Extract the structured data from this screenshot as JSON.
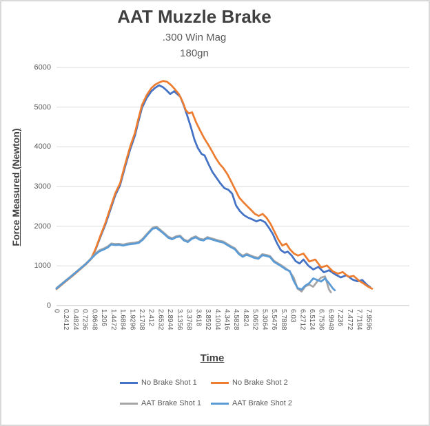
{
  "chart_data": {
    "type": "line",
    "title": "AAT Muzzle Brake",
    "subtitle_line1": ".300 Win Mag",
    "subtitle_line2": "180gn",
    "xlabel": "Time",
    "ylabel": "Force Measured (Newton)",
    "ylim": [
      0,
      6000
    ],
    "y_ticks": [
      0,
      1000,
      2000,
      3000,
      4000,
      5000,
      6000
    ],
    "x_axis_max_time": 9.0,
    "grid": "horizontal",
    "legend_position": "bottom",
    "gridline_color": "#d9d9d9",
    "axis_line_color": "#bfbfbf",
    "text_color": "#595959",
    "x_tick_labels": [
      "0",
      "0.2412",
      "0.4824",
      "0.7236",
      "0.9648",
      "1.206",
      "1.4472",
      "1.6884",
      "1.9296",
      "2.1708",
      "2.412",
      "2.6532",
      "2.8944",
      "3.1356",
      "3.3768",
      "3.618",
      "3.8592",
      "4.1004",
      "4.3416",
      "4.5828",
      "4.824",
      "5.0652",
      "5.3064",
      "5.5476",
      "5.7888",
      "6.03",
      "6.2712",
      "6.5124",
      "6.7536",
      "6.9948",
      "7.236",
      "7.4772",
      "7.7184",
      "7.9596"
    ],
    "series": [
      {
        "name": "No Brake Shot 1",
        "color": "#4472C4",
        "points": [
          [
            0,
            430
          ],
          [
            0.12,
            530
          ],
          [
            0.25,
            635
          ],
          [
            0.38,
            740
          ],
          [
            0.5,
            840
          ],
          [
            0.62,
            940
          ],
          [
            0.75,
            1050
          ],
          [
            0.88,
            1180
          ],
          [
            1.0,
            1420
          ],
          [
            1.12,
            1730
          ],
          [
            1.25,
            2050
          ],
          [
            1.38,
            2430
          ],
          [
            1.5,
            2780
          ],
          [
            1.62,
            3030
          ],
          [
            1.75,
            3500
          ],
          [
            1.88,
            3940
          ],
          [
            2.0,
            4280
          ],
          [
            2.08,
            4600
          ],
          [
            2.18,
            4980
          ],
          [
            2.3,
            5230
          ],
          [
            2.42,
            5400
          ],
          [
            2.52,
            5490
          ],
          [
            2.62,
            5550
          ],
          [
            2.72,
            5500
          ],
          [
            2.8,
            5430
          ],
          [
            2.9,
            5330
          ],
          [
            3.0,
            5400
          ],
          [
            3.08,
            5330
          ],
          [
            3.16,
            5260
          ],
          [
            3.24,
            5060
          ],
          [
            3.32,
            4830
          ],
          [
            3.42,
            4520
          ],
          [
            3.52,
            4180
          ],
          [
            3.6,
            3980
          ],
          [
            3.7,
            3820
          ],
          [
            3.78,
            3780
          ],
          [
            3.88,
            3560
          ],
          [
            3.98,
            3360
          ],
          [
            4.08,
            3220
          ],
          [
            4.18,
            3080
          ],
          [
            4.28,
            2960
          ],
          [
            4.38,
            2920
          ],
          [
            4.48,
            2820
          ],
          [
            4.58,
            2520
          ],
          [
            4.68,
            2380
          ],
          [
            4.78,
            2280
          ],
          [
            4.88,
            2220
          ],
          [
            5.0,
            2170
          ],
          [
            5.1,
            2120
          ],
          [
            5.2,
            2160
          ],
          [
            5.32,
            2100
          ],
          [
            5.42,
            1960
          ],
          [
            5.52,
            1800
          ],
          [
            5.62,
            1580
          ],
          [
            5.72,
            1400
          ],
          [
            5.82,
            1330
          ],
          [
            5.9,
            1360
          ],
          [
            6.0,
            1260
          ],
          [
            6.1,
            1120
          ],
          [
            6.2,
            1060
          ],
          [
            6.3,
            1160
          ],
          [
            6.42,
            1010
          ],
          [
            6.55,
            910
          ],
          [
            6.68,
            975
          ],
          [
            6.82,
            840
          ],
          [
            6.95,
            890
          ],
          [
            7.1,
            790
          ],
          [
            7.25,
            710
          ],
          [
            7.4,
            765
          ],
          [
            7.55,
            655
          ],
          [
            7.68,
            610
          ],
          [
            7.8,
            645
          ],
          [
            7.92,
            520
          ],
          [
            8.0,
            465
          ]
        ]
      },
      {
        "name": "No Brake Shot 2",
        "color": "#ED7D31",
        "points": [
          [
            0,
            415
          ],
          [
            0.12,
            515
          ],
          [
            0.25,
            620
          ],
          [
            0.38,
            725
          ],
          [
            0.5,
            825
          ],
          [
            0.62,
            930
          ],
          [
            0.75,
            1040
          ],
          [
            0.88,
            1170
          ],
          [
            1.0,
            1440
          ],
          [
            1.12,
            1760
          ],
          [
            1.25,
            2090
          ],
          [
            1.38,
            2480
          ],
          [
            1.5,
            2830
          ],
          [
            1.62,
            3080
          ],
          [
            1.75,
            3560
          ],
          [
            1.88,
            4010
          ],
          [
            2.0,
            4350
          ],
          [
            2.08,
            4670
          ],
          [
            2.18,
            5050
          ],
          [
            2.3,
            5300
          ],
          [
            2.42,
            5480
          ],
          [
            2.52,
            5570
          ],
          [
            2.62,
            5620
          ],
          [
            2.72,
            5660
          ],
          [
            2.82,
            5640
          ],
          [
            2.92,
            5560
          ],
          [
            3.02,
            5450
          ],
          [
            3.12,
            5330
          ],
          [
            3.22,
            5130
          ],
          [
            3.3,
            4920
          ],
          [
            3.38,
            4840
          ],
          [
            3.46,
            4870
          ],
          [
            3.56,
            4620
          ],
          [
            3.66,
            4420
          ],
          [
            3.76,
            4230
          ],
          [
            3.86,
            4070
          ],
          [
            3.96,
            3900
          ],
          [
            4.06,
            3720
          ],
          [
            4.16,
            3570
          ],
          [
            4.26,
            3460
          ],
          [
            4.36,
            3310
          ],
          [
            4.46,
            3120
          ],
          [
            4.56,
            2920
          ],
          [
            4.66,
            2720
          ],
          [
            4.76,
            2610
          ],
          [
            4.86,
            2510
          ],
          [
            4.96,
            2410
          ],
          [
            5.06,
            2310
          ],
          [
            5.16,
            2260
          ],
          [
            5.26,
            2310
          ],
          [
            5.36,
            2210
          ],
          [
            5.46,
            2060
          ],
          [
            5.56,
            1860
          ],
          [
            5.66,
            1660
          ],
          [
            5.76,
            1510
          ],
          [
            5.86,
            1560
          ],
          [
            5.96,
            1410
          ],
          [
            6.06,
            1310
          ],
          [
            6.16,
            1260
          ],
          [
            6.3,
            1310
          ],
          [
            6.45,
            1110
          ],
          [
            6.6,
            1160
          ],
          [
            6.75,
            960
          ],
          [
            6.9,
            1010
          ],
          [
            7.05,
            860
          ],
          [
            7.18,
            805
          ],
          [
            7.3,
            845
          ],
          [
            7.45,
            725
          ],
          [
            7.58,
            745
          ],
          [
            7.72,
            625
          ],
          [
            7.85,
            545
          ],
          [
            7.95,
            475
          ],
          [
            8.05,
            425
          ]
        ]
      },
      {
        "name": "AAT Brake Shot 1",
        "color": "#A5A5A5",
        "points": [
          [
            0,
            440
          ],
          [
            0.12,
            540
          ],
          [
            0.25,
            645
          ],
          [
            0.38,
            750
          ],
          [
            0.5,
            850
          ],
          [
            0.62,
            950
          ],
          [
            0.75,
            1060
          ],
          [
            0.88,
            1190
          ],
          [
            1.0,
            1320
          ],
          [
            1.1,
            1395
          ],
          [
            1.2,
            1435
          ],
          [
            1.3,
            1485
          ],
          [
            1.4,
            1565
          ],
          [
            1.5,
            1550
          ],
          [
            1.6,
            1555
          ],
          [
            1.7,
            1535
          ],
          [
            1.8,
            1560
          ],
          [
            1.9,
            1575
          ],
          [
            2.0,
            1585
          ],
          [
            2.1,
            1605
          ],
          [
            2.2,
            1685
          ],
          [
            2.32,
            1820
          ],
          [
            2.45,
            1960
          ],
          [
            2.55,
            1990
          ],
          [
            2.65,
            1905
          ],
          [
            2.75,
            1825
          ],
          [
            2.85,
            1735
          ],
          [
            2.95,
            1695
          ],
          [
            3.05,
            1745
          ],
          [
            3.15,
            1765
          ],
          [
            3.25,
            1665
          ],
          [
            3.35,
            1625
          ],
          [
            3.45,
            1705
          ],
          [
            3.55,
            1745
          ],
          [
            3.65,
            1685
          ],
          [
            3.75,
            1665
          ],
          [
            3.85,
            1725
          ],
          [
            3.95,
            1695
          ],
          [
            4.05,
            1665
          ],
          [
            4.15,
            1635
          ],
          [
            4.25,
            1615
          ],
          [
            4.35,
            1555
          ],
          [
            4.45,
            1495
          ],
          [
            4.55,
            1445
          ],
          [
            4.65,
            1325
          ],
          [
            4.75,
            1255
          ],
          [
            4.85,
            1305
          ],
          [
            4.95,
            1265
          ],
          [
            5.05,
            1225
          ],
          [
            5.15,
            1205
          ],
          [
            5.25,
            1295
          ],
          [
            5.35,
            1275
          ],
          [
            5.45,
            1245
          ],
          [
            5.55,
            1125
          ],
          [
            5.65,
            1065
          ],
          [
            5.75,
            1005
          ],
          [
            5.85,
            935
          ],
          [
            5.95,
            855
          ],
          [
            6.05,
            705
          ],
          [
            6.15,
            425
          ],
          [
            6.25,
            355
          ],
          [
            6.35,
            485
          ],
          [
            6.45,
            525
          ],
          [
            6.55,
            475
          ],
          [
            6.65,
            605
          ],
          [
            6.75,
            705
          ],
          [
            6.85,
            735
          ],
          [
            6.95,
            405
          ],
          [
            7.0,
            335
          ]
        ]
      },
      {
        "name": "AAT Brake Shot 2",
        "color": "#5B9BD5",
        "points": [
          [
            0,
            425
          ],
          [
            0.12,
            528
          ],
          [
            0.25,
            632
          ],
          [
            0.38,
            738
          ],
          [
            0.5,
            838
          ],
          [
            0.62,
            938
          ],
          [
            0.75,
            1048
          ],
          [
            0.88,
            1175
          ],
          [
            1.0,
            1295
          ],
          [
            1.1,
            1370
          ],
          [
            1.2,
            1410
          ],
          [
            1.3,
            1460
          ],
          [
            1.4,
            1540
          ],
          [
            1.5,
            1525
          ],
          [
            1.6,
            1530
          ],
          [
            1.7,
            1510
          ],
          [
            1.8,
            1535
          ],
          [
            1.9,
            1550
          ],
          [
            2.0,
            1560
          ],
          [
            2.1,
            1580
          ],
          [
            2.2,
            1660
          ],
          [
            2.32,
            1795
          ],
          [
            2.45,
            1935
          ],
          [
            2.55,
            1955
          ],
          [
            2.65,
            1880
          ],
          [
            2.75,
            1800
          ],
          [
            2.85,
            1710
          ],
          [
            2.95,
            1670
          ],
          [
            3.05,
            1720
          ],
          [
            3.15,
            1740
          ],
          [
            3.25,
            1640
          ],
          [
            3.35,
            1600
          ],
          [
            3.45,
            1680
          ],
          [
            3.55,
            1720
          ],
          [
            3.65,
            1660
          ],
          [
            3.75,
            1640
          ],
          [
            3.85,
            1700
          ],
          [
            3.95,
            1670
          ],
          [
            4.05,
            1640
          ],
          [
            4.15,
            1610
          ],
          [
            4.25,
            1590
          ],
          [
            4.35,
            1530
          ],
          [
            4.45,
            1470
          ],
          [
            4.55,
            1420
          ],
          [
            4.65,
            1300
          ],
          [
            4.75,
            1230
          ],
          [
            4.85,
            1280
          ],
          [
            4.95,
            1240
          ],
          [
            5.05,
            1200
          ],
          [
            5.15,
            1180
          ],
          [
            5.25,
            1270
          ],
          [
            5.35,
            1250
          ],
          [
            5.45,
            1220
          ],
          [
            5.55,
            1100
          ],
          [
            5.65,
            1040
          ],
          [
            5.75,
            980
          ],
          [
            5.85,
            910
          ],
          [
            5.95,
            870
          ],
          [
            6.05,
            620
          ],
          [
            6.15,
            440
          ],
          [
            6.25,
            405
          ],
          [
            6.35,
            505
          ],
          [
            6.45,
            565
          ],
          [
            6.55,
            685
          ],
          [
            6.65,
            645
          ],
          [
            6.75,
            605
          ],
          [
            6.85,
            685
          ],
          [
            6.95,
            565
          ],
          [
            7.05,
            430
          ],
          [
            7.1,
            385
          ]
        ]
      }
    ]
  }
}
